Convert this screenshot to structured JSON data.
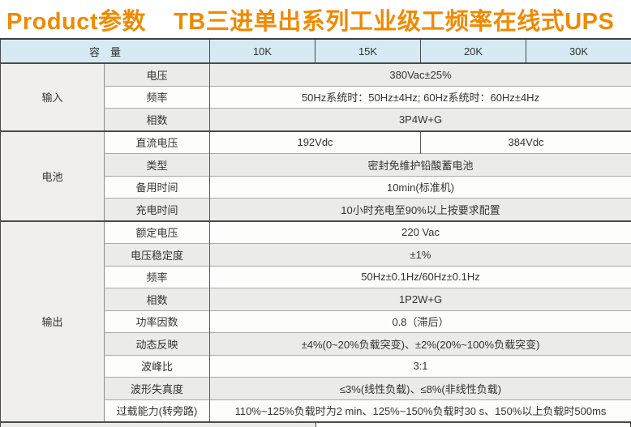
{
  "title": {
    "part1": "Product参数",
    "part2": "TB三进单出系列工业级工频率在线式UPS"
  },
  "colors": {
    "title_orange": "#F08A00",
    "header_blue": "#D6EAF3",
    "row_gray": "#EBEBE9",
    "row_white": "#FDFDFC",
    "group_column_gray": "#F0EFED",
    "border_dark": "#4A4A4A",
    "border_light": "#ABABAB"
  },
  "table": {
    "header": {
      "capacity_label": "容　量",
      "columns": [
        "10K",
        "15K",
        "20K",
        "30K"
      ]
    },
    "sections": [
      {
        "id": "input",
        "group": "输入",
        "rows": [
          {
            "label": "电压",
            "cells": [
              {
                "text": "380Vac±25%",
                "span": 4
              }
            ]
          },
          {
            "label": "频率",
            "cells": [
              {
                "text": "50Hz系统时：50Hz±4Hz; 60Hz系统时：60Hz±4Hz",
                "span": 4
              }
            ]
          },
          {
            "label": "相数",
            "cells": [
              {
                "text": "3P4W+G",
                "span": 4
              }
            ]
          }
        ]
      },
      {
        "id": "battery",
        "group": "电池",
        "rows": [
          {
            "label": "直流电压",
            "cells": [
              {
                "text": "192Vdc",
                "span": 2
              },
              {
                "text": "384Vdc",
                "span": 2
              }
            ]
          },
          {
            "label": "类型",
            "cells": [
              {
                "text": "密封免维护铅酸蓄电池",
                "span": 4
              }
            ]
          },
          {
            "label": "备用时间",
            "cells": [
              {
                "text": "10min(标准机)",
                "span": 4
              }
            ]
          },
          {
            "label": "充电时间",
            "cells": [
              {
                "text": "10小时充电至90%以上按要求配置",
                "span": 4
              }
            ]
          }
        ]
      },
      {
        "id": "output",
        "group": "输出",
        "rows": [
          {
            "label": "额定电压",
            "cells": [
              {
                "text": "220 Vac",
                "span": 4
              }
            ]
          },
          {
            "label": "电压稳定度",
            "cells": [
              {
                "text": "±1%",
                "span": 4
              }
            ]
          },
          {
            "label": "频率",
            "cells": [
              {
                "text": "50Hz±0.1Hz/60Hz±0.1Hz",
                "span": 4
              }
            ]
          },
          {
            "label": "相数",
            "cells": [
              {
                "text": "1P2W+G",
                "span": 4
              }
            ]
          },
          {
            "label": "功率因数",
            "cells": [
              {
                "text": "0.8（滞后）",
                "span": 4
              }
            ]
          },
          {
            "label": "动态反映",
            "cells": [
              {
                "text": "±4%(0~20%负载突变)、±2%(20%~100%负载突变)",
                "span": 4
              }
            ]
          },
          {
            "label": "波峰比",
            "cells": [
              {
                "text": "3:1",
                "span": 4
              }
            ]
          },
          {
            "label": "波形失真度",
            "cells": [
              {
                "text": "≤3%(线性负载)、≤8%(非线性负载)",
                "span": 4
              }
            ]
          },
          {
            "label": "过载能力(转旁路)",
            "cells": [
              {
                "text": "110%~125%负载时为2 min、125%~150%负载时30 s、150%以上负载时500ms",
                "span": 4
              }
            ]
          }
        ]
      }
    ]
  }
}
